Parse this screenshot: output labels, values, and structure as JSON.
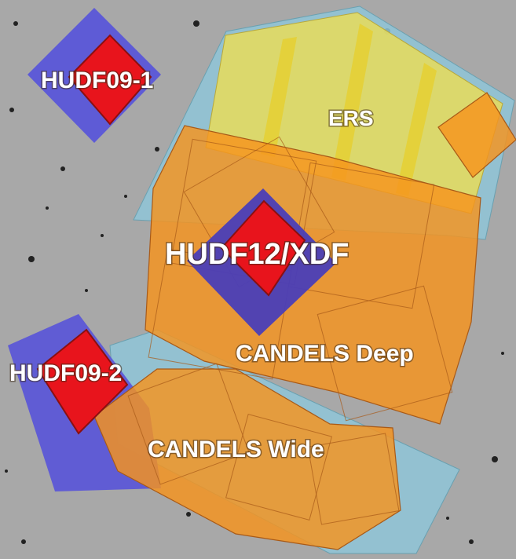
{
  "labels": {
    "hudf09_1": "HUDF09-1",
    "ers": "ERS",
    "hudf12_xdf": "HUDF12/XDF",
    "candels_deep": "CANDELS Deep",
    "hudf09_2": "HUDF09-2",
    "candels_wide": "CANDELS Wide"
  }
}
